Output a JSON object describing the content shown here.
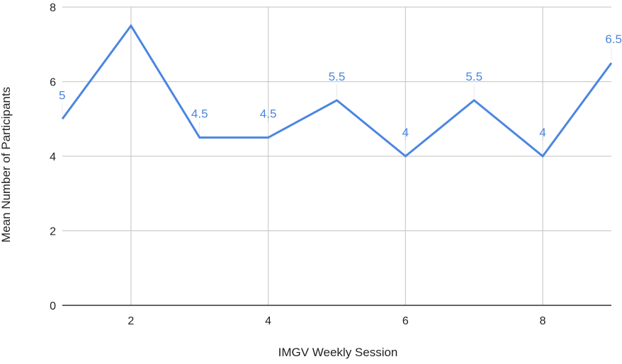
{
  "chart_data": {
    "type": "line",
    "xlabel": "IMGV Weekly Session",
    "ylabel": "Mean Number of Participants",
    "xlim": [
      1,
      9
    ],
    "ylim": [
      0,
      8
    ],
    "x_ticks": [
      2,
      4,
      6,
      8
    ],
    "y_ticks": [
      0,
      2,
      4,
      6,
      8
    ],
    "grid": true,
    "series": [
      {
        "x": [
          1,
          2,
          3,
          4,
          5,
          6,
          7,
          8,
          9
        ],
        "values": [
          5,
          7.5,
          4.5,
          4.5,
          5.5,
          4,
          5.5,
          4,
          6.5
        ],
        "data_labels": [
          "5",
          "",
          "4.5",
          "4.5",
          "5.5",
          "4",
          "5.5",
          "4",
          "6.5"
        ],
        "color": "#4a86e0"
      }
    ],
    "colors": {
      "grid": "#cccccc",
      "axis": "#333333",
      "label": "#4a86e0"
    }
  }
}
